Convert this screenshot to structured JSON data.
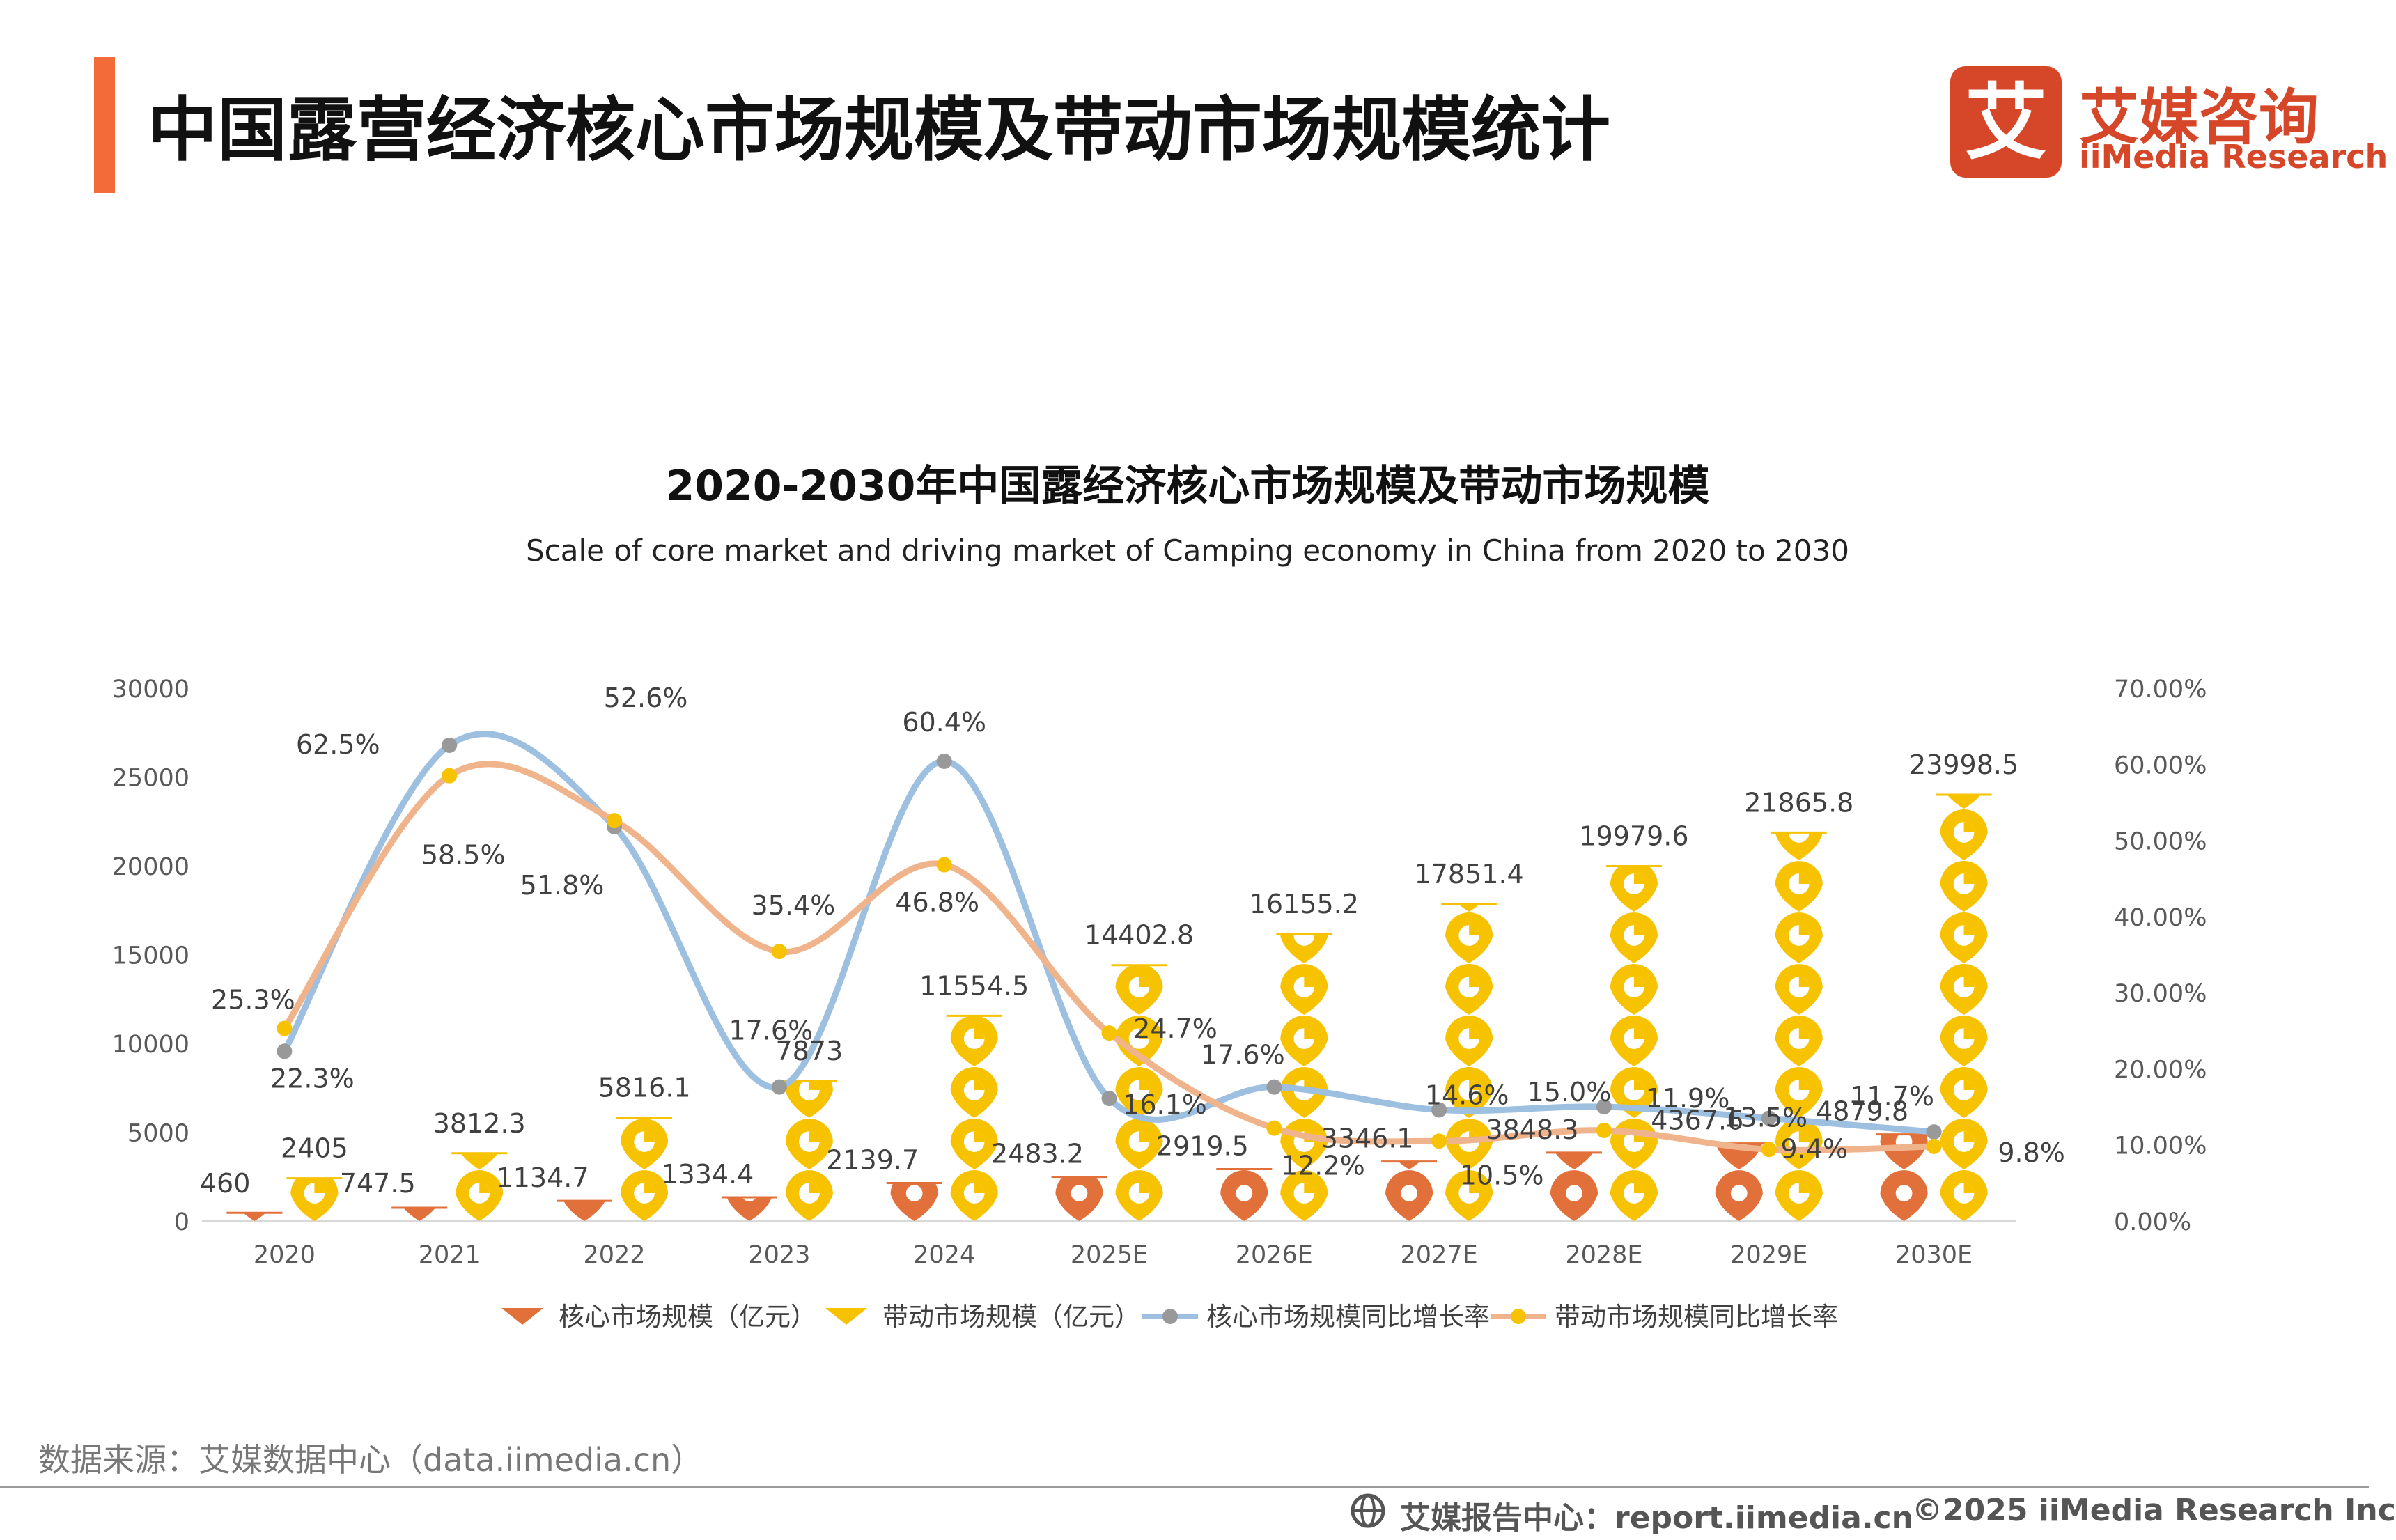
{
  "page": {
    "title": "中国露营经济核心市场规模及带动市场规模统计",
    "brand_cn": "艾媒咨询",
    "brand_en": "iiMedia Research",
    "logo_char": "艾",
    "source": "数据来源：艾媒数据中心（data.iimedia.cn）",
    "footer_report": "艾媒报告中心：report.iimedia.cn",
    "footer_copyright": "©2025  iiMedia Research  Inc"
  },
  "colors": {
    "accent": "#f26b38",
    "brand": "#d6472a",
    "core_bar": "#e2703a",
    "driving_bar": "#f7c300",
    "core_rate_line": "#9dbfe0",
    "core_rate_marker": "#999999",
    "driving_rate_line": "#f0b48c",
    "driving_rate_marker": "#f7c300"
  },
  "chart_data": {
    "type": "bar",
    "title": "2020-2030年中国露经济核心市场规模及带动市场规模",
    "subtitle": "Scale of core market and driving market of Camping economy in China from 2020 to 2030",
    "categories": [
      "2020",
      "2021",
      "2022",
      "2023",
      "2024",
      "2025E",
      "2026E",
      "2027E",
      "2028E",
      "2029E",
      "2030E"
    ],
    "y_left": {
      "min": 0,
      "max": 30000,
      "ticks": [
        "0",
        "5000",
        "10000",
        "15000",
        "20000",
        "25000",
        "30000"
      ]
    },
    "y_right": {
      "min": 0,
      "max": 0.7,
      "ticks": [
        "0.00%",
        "10.00%",
        "20.00%",
        "30.00%",
        "40.00%",
        "50.00%",
        "60.00%",
        "70.00%"
      ]
    },
    "grid": false,
    "legend_position": "bottom",
    "series": [
      {
        "name": "核心市场规模（亿元）",
        "kind": "bar",
        "values": [
          460,
          747.5,
          1134.7,
          1334.4,
          2139.7,
          2483.2,
          2919.5,
          3346.1,
          3848.3,
          4367.6,
          4879.8
        ],
        "labels": [
          "460",
          "747.5",
          "1134.7",
          "1334.4",
          "2139.7",
          "2483.2",
          "2919.5",
          "3346.1",
          "3848.3",
          "4367.6",
          "4879.8"
        ]
      },
      {
        "name": "带动市场规模（亿元）",
        "kind": "bar",
        "values": [
          2405,
          3812.3,
          5816.1,
          7873,
          11554.5,
          14402.8,
          16155.2,
          17851.4,
          19979.6,
          21865.8,
          23998.5
        ],
        "labels": [
          "2405",
          "3812.3",
          "5816.1",
          "7873",
          "11554.5",
          "14402.8",
          "16155.2",
          "17851.4",
          "19979.6",
          "21865.8",
          "23998.5"
        ]
      },
      {
        "name": "核心市场规模同比增长率",
        "kind": "line",
        "axis": "right",
        "values": [
          0.223,
          0.625,
          0.518,
          0.176,
          0.604,
          0.161,
          0.176,
          0.146,
          0.15,
          0.135,
          0.117
        ],
        "labels": [
          "22.3%",
          "62.5%",
          "51.8%",
          "17.6%",
          "60.4%",
          "16.1%",
          "17.6%",
          "14.6%",
          "15.0%",
          "13.5%",
          "11.7%"
        ]
      },
      {
        "name": "带动市场规模同比增长率",
        "kind": "line",
        "axis": "right",
        "values": [
          0.253,
          0.585,
          0.526,
          0.354,
          0.468,
          0.247,
          0.122,
          0.105,
          0.119,
          0.094,
          0.098
        ],
        "labels": [
          "25.3%",
          "58.5%",
          "52.6%",
          "35.4%",
          "46.8%",
          "24.7%",
          "12.2%",
          "10.5%",
          "11.9%",
          "9.4%",
          "9.8%"
        ]
      }
    ]
  }
}
